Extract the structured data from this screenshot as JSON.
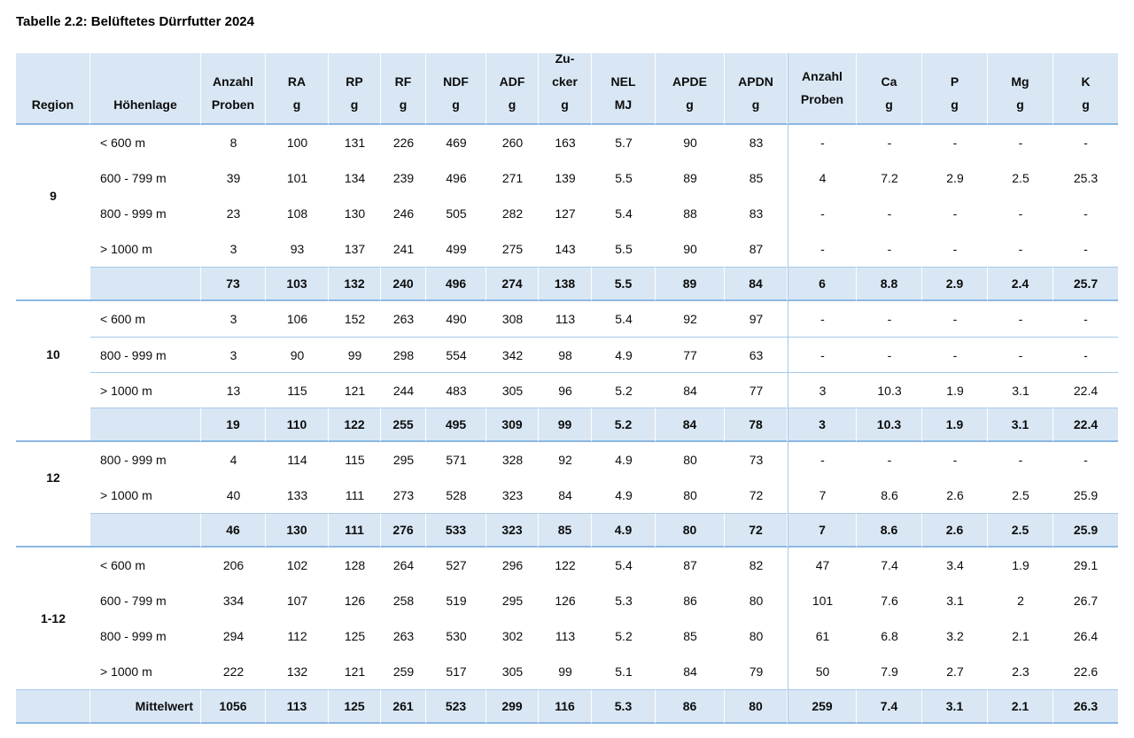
{
  "page": {
    "title": "Tabelle 2.2: Belüftetes Dürrfutter 2024"
  },
  "colors": {
    "fill": "#d9e7f4",
    "line_light": "#a6c9e8",
    "line_strong": "#8cb8e2"
  },
  "table": {
    "columns": [
      {
        "id": "region",
        "label_lines": [
          "Region"
        ]
      },
      {
        "id": "hoehenlage",
        "label_lines": [
          "Höhenlage"
        ]
      },
      {
        "id": "anzahl-proben",
        "label_lines": [
          "Anzahl",
          "Proben"
        ]
      },
      {
        "id": "ra",
        "label_lines": [
          "RA",
          "g"
        ]
      },
      {
        "id": "rp",
        "label_lines": [
          "RP",
          "g"
        ]
      },
      {
        "id": "rf",
        "label_lines": [
          "RF",
          "g"
        ]
      },
      {
        "id": "ndf",
        "label_lines": [
          "NDF",
          "g"
        ]
      },
      {
        "id": "adf",
        "label_lines": [
          "ADF",
          "g"
        ]
      },
      {
        "id": "zucker",
        "label_lines": [
          "Zu-",
          "cker",
          "g"
        ]
      },
      {
        "id": "nel",
        "label_lines": [
          "NEL",
          "MJ"
        ]
      },
      {
        "id": "apde",
        "label_lines": [
          "APDE",
          "g"
        ]
      },
      {
        "id": "apdn",
        "label_lines": [
          "APDN",
          "g"
        ]
      },
      {
        "id": "anzahl-proben-2",
        "label_lines": [
          "Anzahl",
          "Proben"
        ]
      },
      {
        "id": "ca",
        "label_lines": [
          "Ca",
          "g"
        ]
      },
      {
        "id": "p",
        "label_lines": [
          "P",
          "g"
        ]
      },
      {
        "id": "mg",
        "label_lines": [
          "Mg",
          "g"
        ]
      },
      {
        "id": "k",
        "label_lines": [
          "K",
          "g"
        ]
      }
    ],
    "groups": [
      {
        "region": "9",
        "row_separators": false,
        "rows": [
          {
            "hoehenlage": "< 600 m",
            "values": [
              "8",
              "100",
              "131",
              "226",
              "469",
              "260",
              "163",
              "5.7",
              "90",
              "83",
              "-",
              "-",
              "-",
              "-",
              "-"
            ]
          },
          {
            "hoehenlage": "600 - 799 m",
            "values": [
              "39",
              "101",
              "134",
              "239",
              "496",
              "271",
              "139",
              "5.5",
              "89",
              "85",
              "4",
              "7.2",
              "2.9",
              "2.5",
              "25.3"
            ]
          },
          {
            "hoehenlage": "800 - 999 m",
            "values": [
              "23",
              "108",
              "130",
              "246",
              "505",
              "282",
              "127",
              "5.4",
              "88",
              "83",
              "-",
              "-",
              "-",
              "-",
              "-"
            ]
          },
          {
            "hoehenlage": "> 1000 m",
            "values": [
              "3",
              "93",
              "137",
              "241",
              "499",
              "275",
              "143",
              "5.5",
              "90",
              "87",
              "-",
              "-",
              "-",
              "-",
              "-"
            ]
          }
        ],
        "summary": {
          "hoehenlage": "",
          "values": [
            "73",
            "103",
            "132",
            "240",
            "496",
            "274",
            "138",
            "5.5",
            "89",
            "84",
            "6",
            "8.8",
            "2.9",
            "2.4",
            "25.7"
          ]
        }
      },
      {
        "region": "10",
        "row_separators": true,
        "rows": [
          {
            "hoehenlage": "< 600 m",
            "values": [
              "3",
              "106",
              "152",
              "263",
              "490",
              "308",
              "113",
              "5.4",
              "92",
              "97",
              "-",
              "-",
              "-",
              "-",
              "-"
            ]
          },
          {
            "hoehenlage": "800 - 999 m",
            "values": [
              "3",
              "90",
              "99",
              "298",
              "554",
              "342",
              "98",
              "4.9",
              "77",
              "63",
              "-",
              "-",
              "-",
              "-",
              "-"
            ]
          },
          {
            "hoehenlage": "> 1000 m",
            "values": [
              "13",
              "115",
              "121",
              "244",
              "483",
              "305",
              "96",
              "5.2",
              "84",
              "77",
              "3",
              "10.3",
              "1.9",
              "3.1",
              "22.4"
            ]
          }
        ],
        "summary": {
          "hoehenlage": "",
          "values": [
            "19",
            "110",
            "122",
            "255",
            "495",
            "309",
            "99",
            "5.2",
            "84",
            "78",
            "3",
            "10.3",
            "1.9",
            "3.1",
            "22.4"
          ]
        }
      },
      {
        "region": "12",
        "row_separators": false,
        "rows": [
          {
            "hoehenlage": "800 - 999 m",
            "values": [
              "4",
              "114",
              "115",
              "295",
              "571",
              "328",
              "92",
              "4.9",
              "80",
              "73",
              "-",
              "-",
              "-",
              "-",
              "-"
            ]
          },
          {
            "hoehenlage": "> 1000 m",
            "values": [
              "40",
              "133",
              "111",
              "273",
              "528",
              "323",
              "84",
              "4.9",
              "80",
              "72",
              "7",
              "8.6",
              "2.6",
              "2.5",
              "25.9"
            ]
          }
        ],
        "summary": {
          "hoehenlage": "",
          "values": [
            "46",
            "130",
            "111",
            "276",
            "533",
            "323",
            "85",
            "4.9",
            "80",
            "72",
            "7",
            "8.6",
            "2.6",
            "2.5",
            "25.9"
          ]
        }
      },
      {
        "region": "1-12",
        "row_separators": false,
        "rows": [
          {
            "hoehenlage": "< 600 m",
            "values": [
              "206",
              "102",
              "128",
              "264",
              "527",
              "296",
              "122",
              "5.4",
              "87",
              "82",
              "47",
              "7.4",
              "3.4",
              "1.9",
              "29.1"
            ]
          },
          {
            "hoehenlage": "600 - 799 m",
            "values": [
              "334",
              "107",
              "126",
              "258",
              "519",
              "295",
              "126",
              "5.3",
              "86",
              "80",
              "101",
              "7.6",
              "3.1",
              "2",
              "26.7"
            ]
          },
          {
            "hoehenlage": "800 - 999 m",
            "values": [
              "294",
              "112",
              "125",
              "263",
              "530",
              "302",
              "113",
              "5.2",
              "85",
              "80",
              "61",
              "6.8",
              "3.2",
              "2.1",
              "26.4"
            ]
          },
          {
            "hoehenlage": "> 1000 m",
            "values": [
              "222",
              "132",
              "121",
              "259",
              "517",
              "305",
              "99",
              "5.1",
              "84",
              "79",
              "50",
              "7.9",
              "2.7",
              "2.3",
              "22.6"
            ]
          }
        ],
        "summary": {
          "hoehenlage": "Mittelwert",
          "values": [
            "1056",
            "113",
            "125",
            "261",
            "523",
            "299",
            "116",
            "5.3",
            "86",
            "80",
            "259",
            "7.4",
            "3.1",
            "2.1",
            "26.3"
          ]
        }
      }
    ]
  }
}
